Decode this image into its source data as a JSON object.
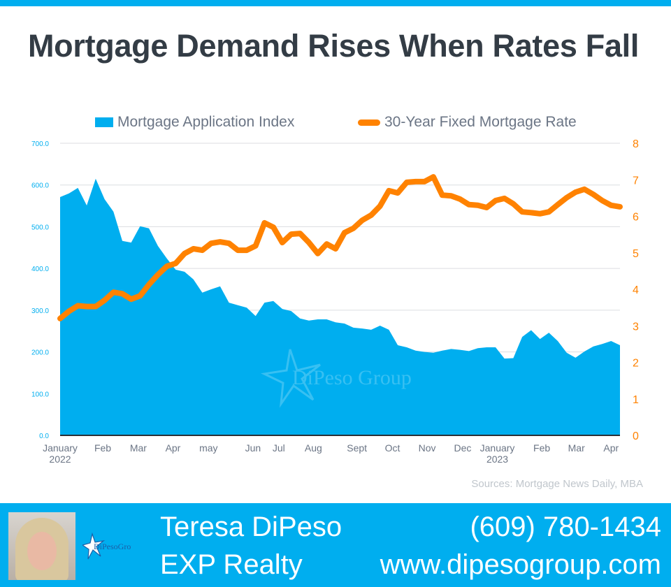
{
  "title": "Mortgage Demand Rises When Rates Fall",
  "source": "Sources: Mortgage News Daily, MBA",
  "footer": {
    "name": "Teresa DiPeso",
    "company": "EXP Realty",
    "phone": "(609) 780-1434",
    "website": "www.dipesogroup.com",
    "logo_text": "DiPeso Group"
  },
  "watermark": "DiPeso Group",
  "colors": {
    "area": "#00aeef",
    "line": "#ff8200",
    "left_axis": "#00aeef",
    "right_axis": "#ff8200"
  },
  "chart_data": {
    "type": "area+line",
    "title": "Mortgage Demand Rises When Rates Fall",
    "legend": [
      "Mortgage Application Index",
      "30-Year Fixed Mortgage Rate"
    ],
    "legend_placement": "top",
    "left_axis": {
      "ticks": [
        "0.0",
        "100.0",
        "200.0",
        "300.0",
        "400.0",
        "500.0",
        "600.0",
        "700.0"
      ],
      "range": [
        0,
        700
      ]
    },
    "right_axis": {
      "ticks": [
        "0",
        "1",
        "2",
        "3",
        "4",
        "5",
        "6",
        "7",
        "8"
      ],
      "range": [
        0,
        8
      ]
    },
    "x_ticks": [
      {
        "label": "January",
        "sub": "2022",
        "week": 0
      },
      {
        "label": "Feb",
        "week": 4.8
      },
      {
        "label": "Mar",
        "week": 8.8
      },
      {
        "label": "Apr",
        "week": 12.7
      },
      {
        "label": "may",
        "week": 16.7
      },
      {
        "label": "Jun",
        "week": 21.7
      },
      {
        "label": "Jul",
        "week": 24.6
      },
      {
        "label": "Aug",
        "week": 28.5
      },
      {
        "label": "Sept",
        "week": 33.4
      },
      {
        "label": "Oct",
        "week": 37.4
      },
      {
        "label": "Nov",
        "week": 41.3
      },
      {
        "label": "Dec",
        "week": 45.3
      },
      {
        "label": "January",
        "sub": "2023",
        "week": 49.2
      },
      {
        "label": "Feb",
        "week": 54.2
      },
      {
        "label": "Mar",
        "week": 58.1
      },
      {
        "label": "Apr",
        "week": 62
      }
    ],
    "grid": true,
    "series": [
      {
        "name": "Mortgage Application Index",
        "type": "area",
        "axis": "left",
        "values": [
          571,
          580,
          593,
          551,
          615,
          566,
          536,
          466,
          462,
          501,
          496,
          454,
          424,
          397,
          392,
          374,
          342,
          350,
          357,
          318,
          312,
          306,
          286,
          318,
          322,
          303,
          298,
          280,
          275,
          278,
          278,
          271,
          268,
          258,
          256,
          253,
          263,
          253,
          216,
          211,
          203,
          200,
          198,
          203,
          207,
          205,
          202,
          209,
          211,
          211,
          184,
          185,
          236,
          252,
          231,
          246,
          226,
          198,
          186,
          201,
          213,
          219,
          226,
          216
        ]
      },
      {
        "name": "30-Year Fixed Mortgage Rate",
        "type": "line",
        "axis": "right",
        "values": [
          3.2,
          3.4,
          3.55,
          3.53,
          3.53,
          3.7,
          3.92,
          3.88,
          3.73,
          3.82,
          4.13,
          4.4,
          4.63,
          4.71,
          4.98,
          5.11,
          5.07,
          5.26,
          5.3,
          5.26,
          5.07,
          5.07,
          5.19,
          5.82,
          5.7,
          5.28,
          5.51,
          5.53,
          5.28,
          4.98,
          5.24,
          5.11,
          5.55,
          5.67,
          5.89,
          6.03,
          6.28,
          6.7,
          6.64,
          6.93,
          6.95,
          6.95,
          7.08,
          6.58,
          6.56,
          6.47,
          6.32,
          6.3,
          6.24,
          6.43,
          6.49,
          6.34,
          6.12,
          6.1,
          6.07,
          6.12,
          6.32,
          6.51,
          6.66,
          6.74,
          6.6,
          6.43,
          6.3,
          6.26
        ]
      }
    ]
  }
}
